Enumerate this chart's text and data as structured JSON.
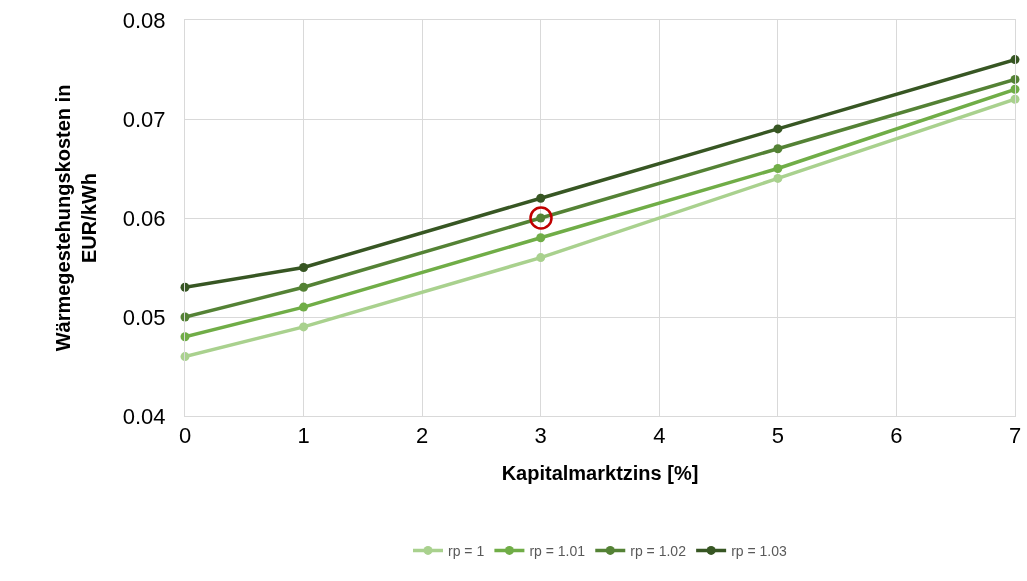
{
  "chart_data": {
    "type": "line",
    "xlabel": "Kapitalmarktzins [%]",
    "ylabel": "Wärmegestehungskosten in\nEUR/kWh",
    "x": [
      0,
      1,
      3,
      5,
      7
    ],
    "series": [
      {
        "name": "rp = 1",
        "color": "#a9d18e",
        "values": [
          0.046,
          0.049,
          0.056,
          0.064,
          0.072
        ]
      },
      {
        "name": "rp = 1.01",
        "color": "#70ad47",
        "values": [
          0.048,
          0.051,
          0.058,
          0.065,
          0.073
        ]
      },
      {
        "name": "rp = 1.02",
        "color": "#548235",
        "values": [
          0.05,
          0.053,
          0.06,
          0.067,
          0.074
        ]
      },
      {
        "name": "rp = 1.03",
        "color": "#375623",
        "values": [
          0.053,
          0.055,
          0.062,
          0.069,
          0.076
        ]
      }
    ],
    "xlim": [
      0,
      7
    ],
    "xticks": [
      0,
      1,
      2,
      3,
      4,
      5,
      6,
      7
    ],
    "ylim": [
      0.04,
      0.08
    ],
    "yticks": [
      {
        "value": 0.04,
        "label": "0.04"
      },
      {
        "value": 0.05,
        "label": "0.05"
      },
      {
        "value": 0.06,
        "label": "0.06"
      },
      {
        "value": 0.07,
        "label": "0.07"
      },
      {
        "value": 0.08,
        "label": "0.08"
      }
    ],
    "grid": true,
    "legend": "bottom",
    "marker": "circle",
    "line_style": "solid"
  }
}
